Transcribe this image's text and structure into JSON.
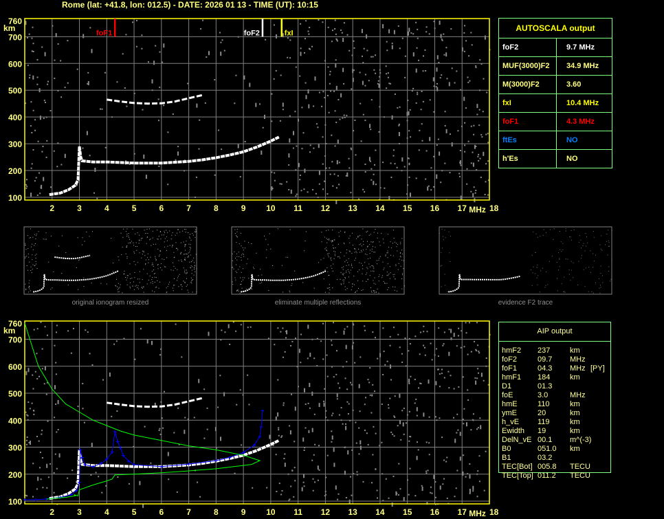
{
  "header": {
    "title": "Rome (lat: +41.8, lon: 012.5) - DATE: 2026 01 13 - TIME (UT): 10:15"
  },
  "colors": {
    "frame": "#ffff00",
    "grid": "#808080",
    "axis_text": "#ffff80",
    "trace": "#ffffff",
    "foF1": "#ff0000",
    "foF2": "#ffffff",
    "fxI": "#ffff00",
    "fit": "#0000ff",
    "profile": "#00ff00",
    "table_border": "#80ff80",
    "blue_text": "#0080ff"
  },
  "autoscala": {
    "title": "AUTOSCALA output",
    "rows": [
      {
        "label": "foF2",
        "value": "9.7 MHz",
        "color": "#ffffff"
      },
      {
        "label": "MUF(3000)F2",
        "value": "34.9 MHz",
        "color": "#ffff80"
      },
      {
        "label": "M(3000)F2",
        "value": "3.60",
        "color": "#ffff80"
      },
      {
        "label": "fxI",
        "value": "10.4 MHz",
        "color": "#ffff00"
      },
      {
        "label": "foF1",
        "value": "4.3 MHz",
        "color": "#ff0000"
      },
      {
        "label": "ftEs",
        "value": "NO",
        "color": "#0080ff"
      },
      {
        "label": "h'Es",
        "value": "NO",
        "color": "#ffff80"
      }
    ]
  },
  "aip": {
    "title": "AIP output",
    "rows": [
      [
        "hmF2",
        "237",
        "km",
        ""
      ],
      [
        "foF2",
        "09.7",
        "MHz",
        ""
      ],
      [
        "foF1",
        "04.3",
        "MHz",
        "[PY]"
      ],
      [
        "hmF1",
        "184",
        "km",
        ""
      ],
      [
        "D1",
        "01.3",
        "",
        ""
      ],
      [
        "foE",
        "3.0",
        "MHz",
        ""
      ],
      [
        "hmE",
        "110",
        "km",
        ""
      ],
      [
        "ymE",
        "20",
        "km",
        ""
      ],
      [
        "h_vE",
        "119",
        "km",
        ""
      ],
      [
        "Ewidth",
        "19",
        "km",
        ""
      ],
      [
        "DelN_vE",
        "00.1",
        "m^(-3)",
        ""
      ],
      [
        "B0",
        "051.0",
        "km",
        ""
      ],
      [
        "B1",
        "03.2",
        "",
        ""
      ],
      [
        "TEC[Bot]",
        "005.8",
        "TECU",
        ""
      ],
      [
        "TEC[Top]",
        "011.2",
        "TECU",
        ""
      ]
    ]
  },
  "thumbnails": [
    {
      "label": "original ionogram resized"
    },
    {
      "label": "eliminate multiple reflections"
    },
    {
      "label": "evidence F2 trace"
    }
  ],
  "chart_data": [
    {
      "type": "scatter",
      "title": "",
      "xlabel": "MHz",
      "ylabel": "km",
      "xlim": [
        1,
        18
      ],
      "ylim": [
        100,
        760
      ],
      "x_ticks": [
        "2",
        "3",
        "4",
        "5",
        "6",
        "7",
        "8",
        "9",
        "10",
        "11",
        "12",
        "13",
        "14",
        "15",
        "16",
        "17",
        "18"
      ],
      "y_ticks": [
        "100",
        "200",
        "300",
        "400",
        "500",
        "600",
        "700",
        "760"
      ],
      "grid": true,
      "markers": [
        {
          "name": "foF1",
          "x": 4.3,
          "color": "#ff0000"
        },
        {
          "name": "foF2",
          "x": 9.7,
          "color": "#ffffff"
        },
        {
          "name": "fxI",
          "x": 10.4,
          "color": "#ffff00"
        }
      ],
      "series": [
        {
          "points": [
            [
              1.9,
              110
            ],
            [
              2.3,
              116
            ],
            [
              2.6,
              128
            ],
            [
              2.85,
              145
            ],
            [
              2.95,
              165
            ],
            [
              3.0,
              290
            ],
            [
              3.05,
              250
            ],
            [
              3.1,
              236
            ],
            [
              3.5,
              232
            ],
            [
              4,
              232
            ],
            [
              4.5,
              230
            ],
            [
              5,
              228
            ],
            [
              6,
              228
            ],
            [
              7,
              234
            ],
            [
              7.5,
              240
            ],
            [
              8,
              248
            ],
            [
              8.5,
              258
            ],
            [
              9,
              270
            ],
            [
              9.5,
              288
            ],
            [
              10,
              310
            ],
            [
              10.3,
              325
            ]
          ]
        },
        {
          "points": [
            [
              4,
              465
            ],
            [
              4.5,
              458
            ],
            [
              5,
              452
            ],
            [
              5.5,
              450
            ],
            [
              6,
              451
            ],
            [
              6.5,
              458
            ],
            [
              7,
              470
            ],
            [
              7.5,
              482
            ]
          ]
        }
      ]
    },
    {
      "type": "scatter",
      "title": "",
      "xlabel": "MHz",
      "ylabel": "km",
      "xlim": [
        1,
        18
      ],
      "ylim": [
        100,
        760
      ],
      "x_ticks": [
        "2",
        "3",
        "4",
        "5",
        "6",
        "7",
        "8",
        "9",
        "10",
        "11",
        "12",
        "13",
        "14",
        "15",
        "16",
        "17",
        "18"
      ],
      "y_ticks": [
        "100",
        "200",
        "300",
        "400",
        "500",
        "600",
        "700",
        "760"
      ],
      "grid": true,
      "series": [
        {
          "points": [
            [
              1.9,
              110
            ],
            [
              2.3,
              116
            ],
            [
              2.6,
              128
            ],
            [
              2.85,
              145
            ],
            [
              2.95,
              165
            ],
            [
              3.0,
              290
            ],
            [
              3.05,
              250
            ],
            [
              3.1,
              236
            ],
            [
              3.5,
              232
            ],
            [
              4,
              232
            ],
            [
              4.5,
              230
            ],
            [
              5,
              228
            ],
            [
              6,
              228
            ],
            [
              7,
              234
            ],
            [
              7.5,
              240
            ],
            [
              8,
              248
            ],
            [
              8.5,
              258
            ],
            [
              9,
              270
            ],
            [
              9.5,
              288
            ],
            [
              10,
              310
            ],
            [
              10.3,
              325
            ]
          ]
        },
        {
          "points": [
            [
              4,
              465
            ],
            [
              4.5,
              458
            ],
            [
              5,
              452
            ],
            [
              5.5,
              450
            ],
            [
              6,
              451
            ],
            [
              6.5,
              458
            ],
            [
              7,
              470
            ],
            [
              7.5,
              482
            ]
          ]
        },
        {
          "color": "#0000ff",
          "points": [
            [
              1,
              105
            ],
            [
              1.4,
              105
            ],
            [
              1.8,
              108
            ],
            [
              2.3,
              114
            ],
            [
              2.7,
              124
            ],
            [
              2.9,
              140
            ],
            [
              3.0,
              170
            ],
            [
              3.03,
              290
            ],
            [
              3.1,
              262
            ],
            [
              3.2,
              235
            ],
            [
              3.5,
              228
            ],
            [
              3.8,
              240
            ],
            [
              4.0,
              255
            ],
            [
              4.2,
              282
            ],
            [
              4.3,
              358
            ],
            [
              4.4,
              320
            ],
            [
              4.5,
              298
            ],
            [
              4.6,
              270
            ],
            [
              4.8,
              248
            ],
            [
              5,
              235
            ],
            [
              6,
              228
            ],
            [
              7,
              237
            ],
            [
              8,
              250
            ],
            [
              8.5,
              262
            ],
            [
              9,
              280
            ],
            [
              9.4,
              308
            ],
            [
              9.6,
              340
            ],
            [
              9.65,
              375
            ],
            [
              9.7,
              435
            ]
          ]
        },
        {
          "color": "#00ff00",
          "points": [
            [
              1.0,
              760
            ],
            [
              1.25,
              680
            ],
            [
              1.5,
              600
            ],
            [
              2,
              515
            ],
            [
              2.5,
              460
            ],
            [
              3,
              430
            ],
            [
              3.5,
              400
            ],
            [
              4,
              380
            ],
            [
              4.5,
              360
            ],
            [
              5,
              345
            ],
            [
              6,
              325
            ],
            [
              7,
              305
            ],
            [
              8,
              290
            ],
            [
              9,
              270
            ],
            [
              9.6,
              250
            ],
            [
              9.3,
              236
            ],
            [
              8,
              220
            ],
            [
              7,
              212
            ],
            [
              6,
              205
            ],
            [
              5,
              200
            ],
            [
              4.3,
              197
            ],
            [
              4.2,
              182
            ],
            [
              4,
              175
            ],
            [
              3.5,
              160
            ],
            [
              3,
              142
            ],
            [
              2.95,
              120
            ],
            [
              2.8,
              124
            ],
            [
              2.85,
              120
            ],
            [
              2.5,
              114
            ],
            [
              2,
              110
            ],
            [
              1.8,
              107
            ]
          ]
        }
      ]
    }
  ]
}
